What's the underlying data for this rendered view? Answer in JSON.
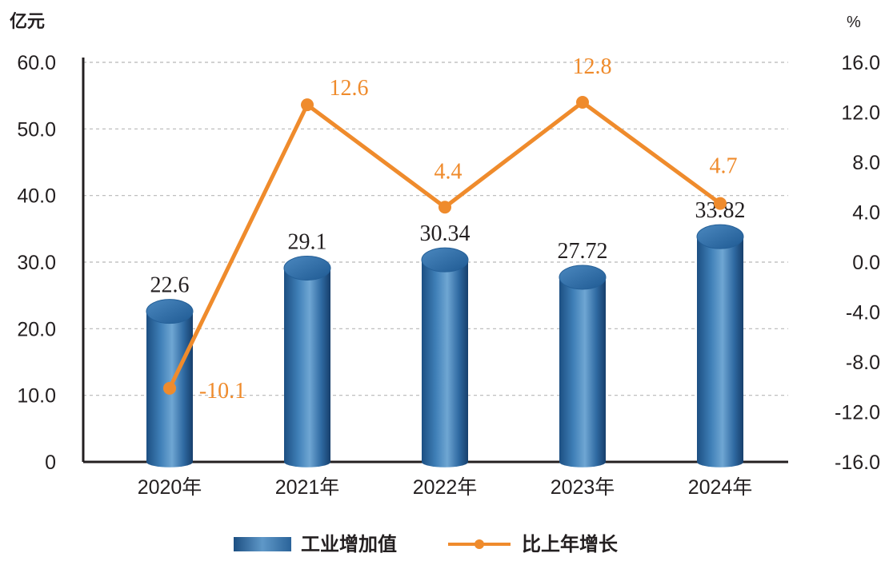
{
  "chart_data": {
    "type": "bar",
    "categories": [
      "2020年",
      "2021年",
      "2022年",
      "2023年",
      "2024年"
    ],
    "left_unit": "亿元",
    "right_unit": "%",
    "y_left": {
      "min": 0,
      "max": 60,
      "ticks": [
        "0",
        "10.0",
        "20.0",
        "30.0",
        "40.0",
        "50.0",
        "60.0"
      ]
    },
    "y_right": {
      "min": -16,
      "max": 16,
      "ticks": [
        "-16.0",
        "-12.0",
        "-8.0",
        "-4.0",
        "0.0",
        "4.0",
        "8.0",
        "12.0",
        "16.0"
      ]
    },
    "grid": true,
    "legend_position": "bottom-center",
    "series": [
      {
        "name": "工业增加值",
        "type": "bar",
        "axis": "left",
        "color": "#2e6da4",
        "values": [
          22.6,
          29.1,
          30.34,
          27.72,
          33.82
        ],
        "labels": [
          "22.6",
          "29.1",
          "30.34",
          "27.72",
          "33.82"
        ]
      },
      {
        "name": "比上年增长",
        "type": "line",
        "axis": "right",
        "color": "#ef8b2c",
        "values": [
          -10.1,
          12.6,
          4.4,
          12.8,
          4.7
        ],
        "labels": [
          "-10.1",
          "12.6",
          "4.4",
          "12.8",
          "4.7"
        ]
      }
    ]
  }
}
